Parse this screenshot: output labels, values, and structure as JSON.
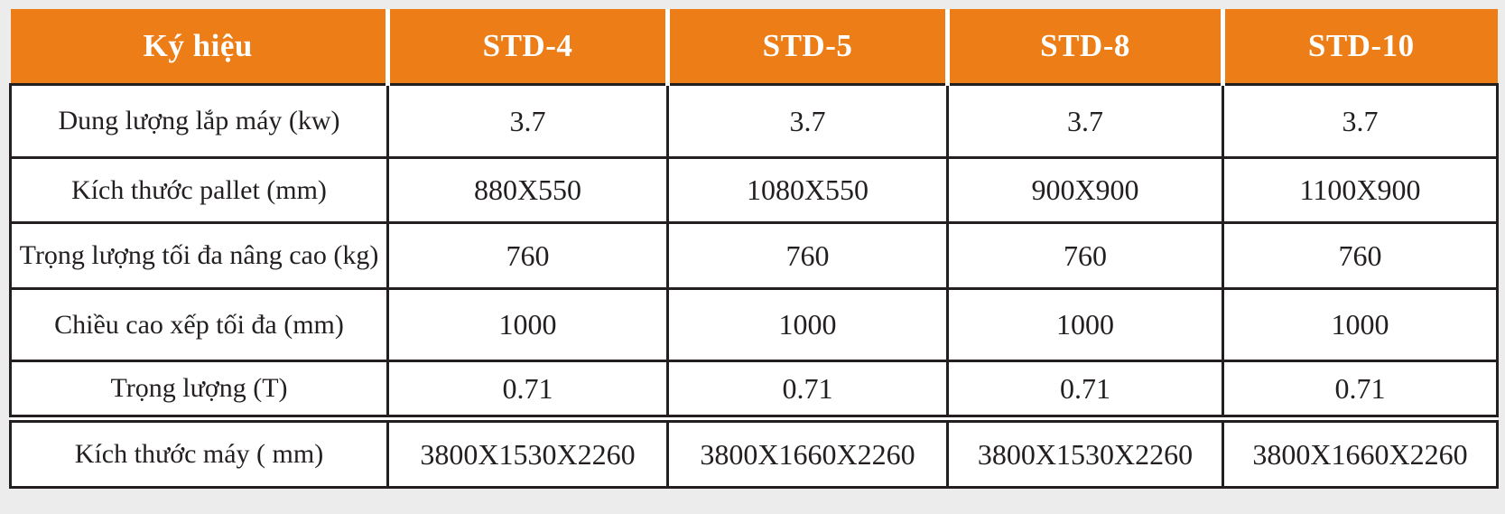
{
  "theme": {
    "page_background": "#ececec",
    "accent_orange": "#ed7d17",
    "header_text_color": "#ffffff",
    "header_separator_color": "#ffffff",
    "border_color": "#231f20",
    "cell_background": "#ffffff",
    "body_text_color": "#231f20"
  },
  "table": {
    "columns": [
      "Ký hiệu",
      "STD-4",
      "STD-5",
      "STD-8",
      "STD-10"
    ],
    "rows": [
      {
        "label": "Dung lượng lắp máy (kw)",
        "values": [
          "3.7",
          "3.7",
          "3.7",
          "3.7"
        ]
      },
      {
        "label": "Kích thước pallet (mm)",
        "values": [
          "880X550",
          "1080X550",
          "900X900",
          "1100X900"
        ]
      },
      {
        "label": "Trọng lượng tối đa nâng cao (kg)",
        "values": [
          "760",
          "760",
          "760",
          "760"
        ]
      },
      {
        "label": "Chiều cao xếp tối đa (mm)",
        "values": [
          "1000",
          "1000",
          "1000",
          "1000"
        ]
      },
      {
        "label": "Trọng lượng (T)",
        "values": [
          "0.71",
          "0.71",
          "0.71",
          "0.71"
        ]
      },
      {
        "label": "Kích thước máy ( mm)",
        "values": [
          "3800X1530X2260",
          "3800X1660X2260",
          "3800X1530X2260",
          "3800X1660X2260"
        ]
      }
    ]
  }
}
